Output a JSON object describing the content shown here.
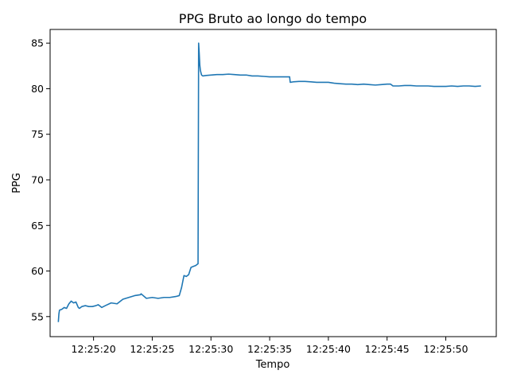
{
  "chart_data": {
    "type": "line",
    "title": "PPG Bruto ao longo do tempo",
    "xlabel": "Tempo",
    "ylabel": "PPG",
    "xlim": [
      "12:25:16.3",
      "12:25:54.3"
    ],
    "ylim": [
      52.8,
      86.5
    ],
    "x_ticks": [
      "12:25:20",
      "12:25:25",
      "12:25:30",
      "12:25:35",
      "12:25:40",
      "12:25:45",
      "12:25:50"
    ],
    "y_ticks": [
      55,
      60,
      65,
      70,
      75,
      80,
      85
    ],
    "grid": false,
    "line_color": "#1f77b4",
    "series": [
      {
        "x": [
          "12:25:17.0",
          "12:25:17.05",
          "12:25:17.1",
          "12:25:17.3",
          "12:25:17.5",
          "12:25:17.7",
          "12:25:17.9",
          "12:25:18.1",
          "12:25:18.3",
          "12:25:18.5",
          "12:25:18.7",
          "12:25:18.8",
          "12:25:19.0",
          "12:25:19.3",
          "12:25:19.6",
          "12:25:19.9",
          "12:25:20.2",
          "12:25:20.4",
          "12:25:20.7",
          "12:25:21.0",
          "12:25:21.5",
          "12:25:22.0",
          "12:25:22.5",
          "12:25:23.0",
          "12:25:23.5",
          "12:25:24.0",
          "12:25:24.05",
          "12:25:24.5",
          "12:25:25.0",
          "12:25:25.5",
          "12:25:26.0",
          "12:25:26.5",
          "12:25:27.0",
          "12:25:27.3",
          "12:25:27.5",
          "12:25:27.7",
          "12:25:27.9",
          "12:25:28.1",
          "12:25:28.3",
          "12:25:28.5",
          "12:25:28.7",
          "12:25:28.9",
          "12:25:28.95",
          "12:25:29.0",
          "12:25:29.05",
          "12:25:29.1",
          "12:25:29.2",
          "12:25:29.3",
          "12:25:29.6",
          "12:25:30.0",
          "12:25:30.5",
          "12:25:31.0",
          "12:25:31.5",
          "12:25:32.0",
          "12:25:32.5",
          "12:25:33.0",
          "12:25:33.5",
          "12:25:34.0",
          "12:25:34.5",
          "12:25:35.0",
          "12:25:35.5",
          "12:25:36.0",
          "12:25:36.5",
          "12:25:36.7",
          "12:25:36.75",
          "12:25:37.0",
          "12:25:37.5",
          "12:25:38.0",
          "12:25:38.5",
          "12:25:39.0",
          "12:25:39.5",
          "12:25:40.0",
          "12:25:40.5",
          "12:25:41.0",
          "12:25:41.5",
          "12:25:42.0",
          "12:25:42.5",
          "12:25:43.0",
          "12:25:43.5",
          "12:25:44.0",
          "12:25:44.5",
          "12:25:45.0",
          "12:25:45.3",
          "12:25:45.5",
          "12:25:46.0",
          "12:25:46.5",
          "12:25:47.0",
          "12:25:47.5",
          "12:25:48.0",
          "12:25:48.5",
          "12:25:49.0",
          "12:25:49.5",
          "12:25:50.0",
          "12:25:50.5",
          "12:25:51.0",
          "12:25:51.5",
          "12:25:52.0",
          "12:25:52.5",
          "12:25:53.0"
        ],
        "values": [
          54.4,
          55.3,
          55.7,
          55.8,
          56.0,
          55.9,
          56.4,
          56.7,
          56.5,
          56.6,
          56.0,
          55.9,
          56.1,
          56.2,
          56.1,
          56.1,
          56.2,
          56.3,
          56.0,
          56.2,
          56.5,
          56.4,
          56.9,
          57.1,
          57.3,
          57.4,
          57.5,
          57.0,
          57.1,
          57.0,
          57.1,
          57.1,
          57.2,
          57.3,
          58.2,
          59.5,
          59.4,
          59.6,
          60.4,
          60.5,
          60.6,
          60.8,
          85.0,
          83.9,
          82.6,
          82.0,
          81.5,
          81.4,
          81.45,
          81.5,
          81.55,
          81.55,
          81.6,
          81.55,
          81.5,
          81.5,
          81.4,
          81.4,
          81.35,
          81.3,
          81.3,
          81.3,
          81.3,
          81.3,
          80.7,
          80.75,
          80.8,
          80.8,
          80.75,
          80.7,
          80.7,
          80.7,
          80.6,
          80.55,
          80.5,
          80.5,
          80.45,
          80.5,
          80.45,
          80.4,
          80.45,
          80.5,
          80.5,
          80.3,
          80.3,
          80.35,
          80.35,
          80.3,
          80.3,
          80.3,
          80.25,
          80.25,
          80.25,
          80.3,
          80.25,
          80.3,
          80.3,
          80.25,
          80.3
        ]
      }
    ]
  }
}
